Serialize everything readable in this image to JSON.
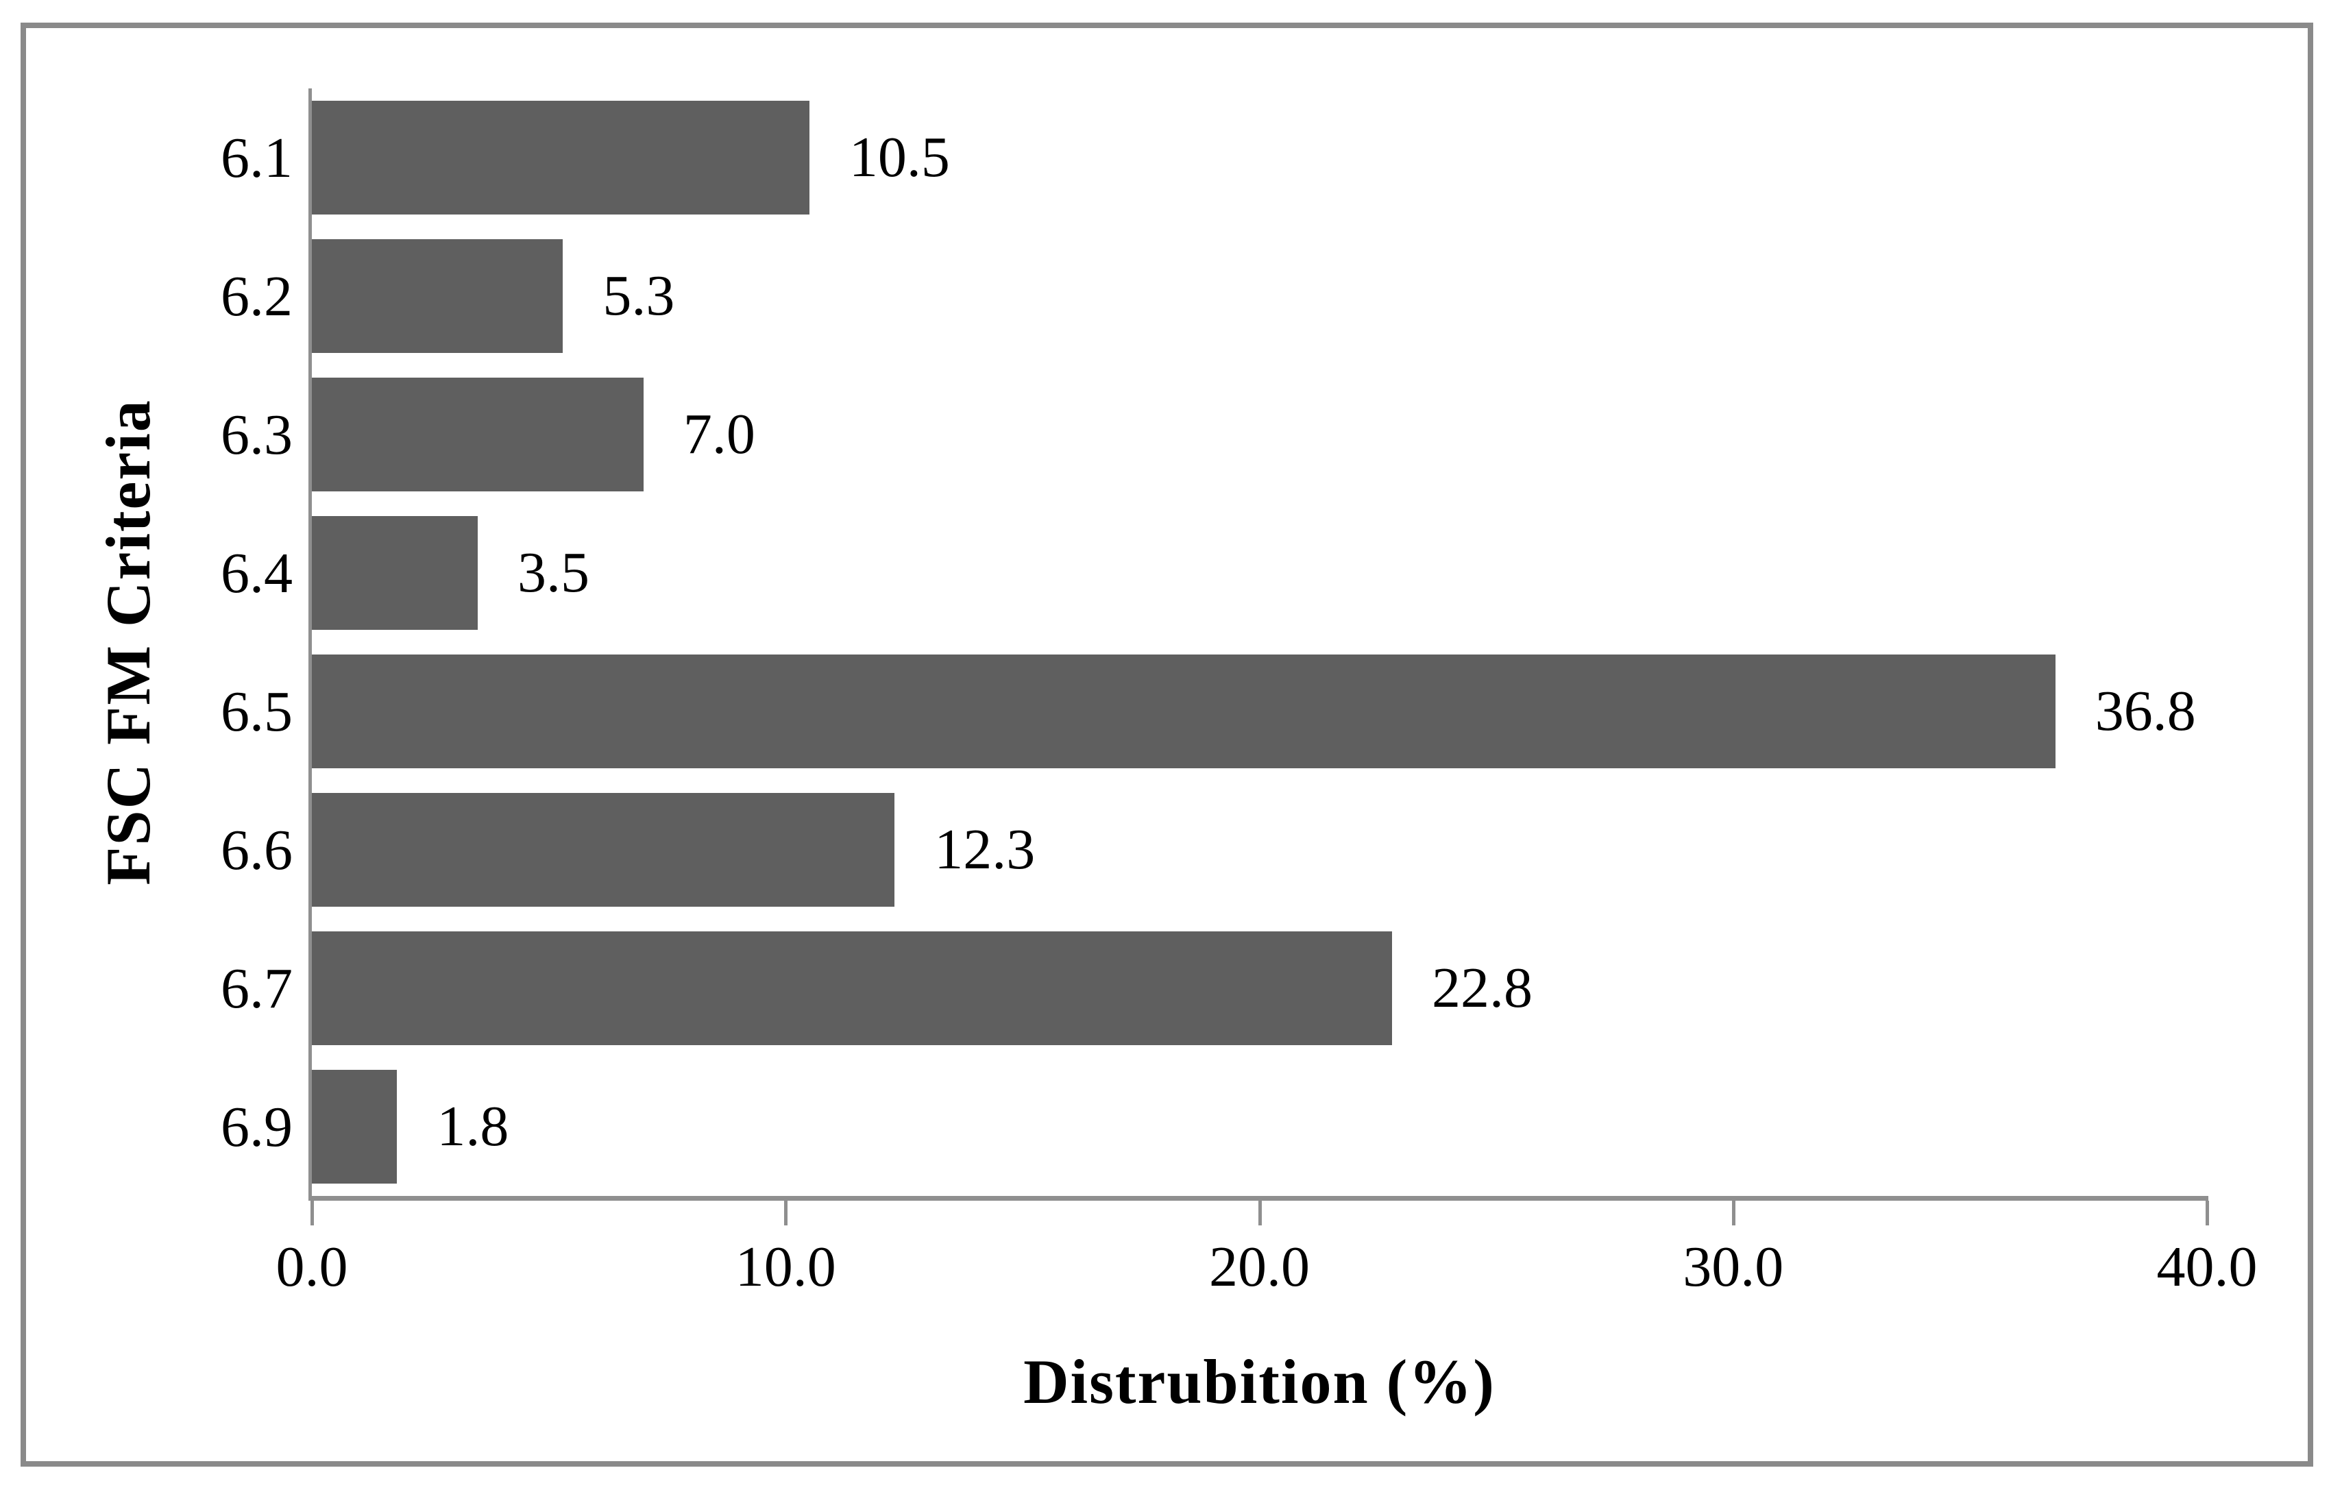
{
  "chart_data": {
    "type": "bar",
    "orientation": "horizontal",
    "title": "",
    "categories": [
      "6.1",
      "6.2",
      "6.3",
      "6.4",
      "6.5",
      "6.6",
      "6.7",
      "6.9"
    ],
    "values": [
      10.5,
      5.3,
      7.0,
      3.5,
      36.8,
      12.3,
      22.8,
      1.8
    ],
    "value_labels": [
      "10.5",
      "5.3",
      "7.0",
      "3.5",
      "36.8",
      "12.3",
      "22.8",
      "1.8"
    ],
    "xlabel": "Distrubition (%)",
    "ylabel": "FSC FM Criteria",
    "xlim": [
      0,
      40
    ],
    "x_tick_labels": [
      "0.0",
      "10.0",
      "20.0",
      "30.0",
      "40.0"
    ],
    "grid": false,
    "legend": false,
    "layout_hints": {
      "bar_labels_position": "right-of-bar",
      "category_order": "top-to-bottom"
    },
    "colors": {
      "bar": "#5f5f5f",
      "axis": "#8f8f8f",
      "frame_border": "#8a8a8a",
      "text": "#000000",
      "background": "#ffffff"
    }
  }
}
